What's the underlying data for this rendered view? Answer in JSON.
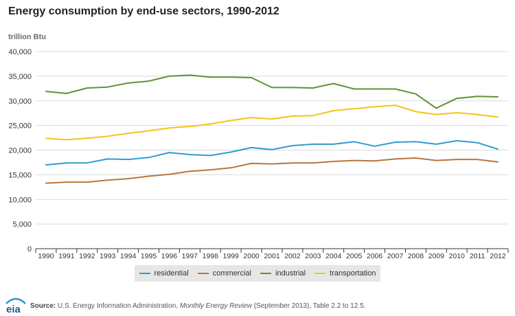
{
  "chart_data": {
    "type": "line",
    "title": "Energy consumption by end-use sectors, 1990-2012",
    "ylabel": "trillion Btu",
    "xlabel": "",
    "ylim": [
      0,
      40000
    ],
    "yticks": [
      "0",
      "5,000",
      "10,000",
      "15,000",
      "20,000",
      "25,000",
      "30,000",
      "35,000",
      "40,000"
    ],
    "grid": true,
    "legend": "bottom",
    "categories": [
      "1990",
      "1991",
      "1992",
      "1993",
      "1994",
      "1995",
      "1996",
      "1997",
      "1998",
      "1999",
      "2000",
      "2001",
      "2002",
      "2003",
      "2004",
      "2005",
      "2006",
      "2007",
      "2008",
      "2009",
      "2010",
      "2011",
      "2012"
    ],
    "series": [
      {
        "name": "residential",
        "color": "#2e9bd0",
        "values": [
          17000,
          17400,
          17400,
          18200,
          18100,
          18500,
          19500,
          19100,
          18900,
          19600,
          20500,
          20100,
          20900,
          21200,
          21200,
          21700,
          20800,
          21600,
          21700,
          21200,
          21900,
          21500,
          20200
        ]
      },
      {
        "name": "commercial",
        "color": "#b8753a",
        "values": [
          13300,
          13500,
          13500,
          13900,
          14200,
          14700,
          15100,
          15700,
          16000,
          16400,
          17300,
          17200,
          17400,
          17400,
          17700,
          17900,
          17800,
          18200,
          18400,
          17900,
          18100,
          18100,
          17600
        ]
      },
      {
        "name": "industrial",
        "color": "#5f9134",
        "values": [
          31900,
          31500,
          32600,
          32800,
          33600,
          34000,
          35000,
          35200,
          34800,
          34800,
          34700,
          32700,
          32700,
          32600,
          33500,
          32400,
          32400,
          32400,
          31400,
          28500,
          30500,
          30900,
          30800
        ]
      },
      {
        "name": "transportation",
        "color": "#f2c417",
        "values": [
          22400,
          22100,
          22400,
          22800,
          23400,
          23900,
          24500,
          24800,
          25300,
          26000,
          26600,
          26300,
          26900,
          27000,
          28000,
          28400,
          28800,
          29100,
          27800,
          27200,
          27600,
          27200,
          26700
        ]
      }
    ]
  },
  "footer": {
    "logo_text": "eia",
    "source_label": "Source:",
    "source_org": "U.S. Energy Information Administration,",
    "source_pub": "Monthly Energy Review",
    "source_rest": "(September 2013), Table 2.2 to 12.5."
  }
}
